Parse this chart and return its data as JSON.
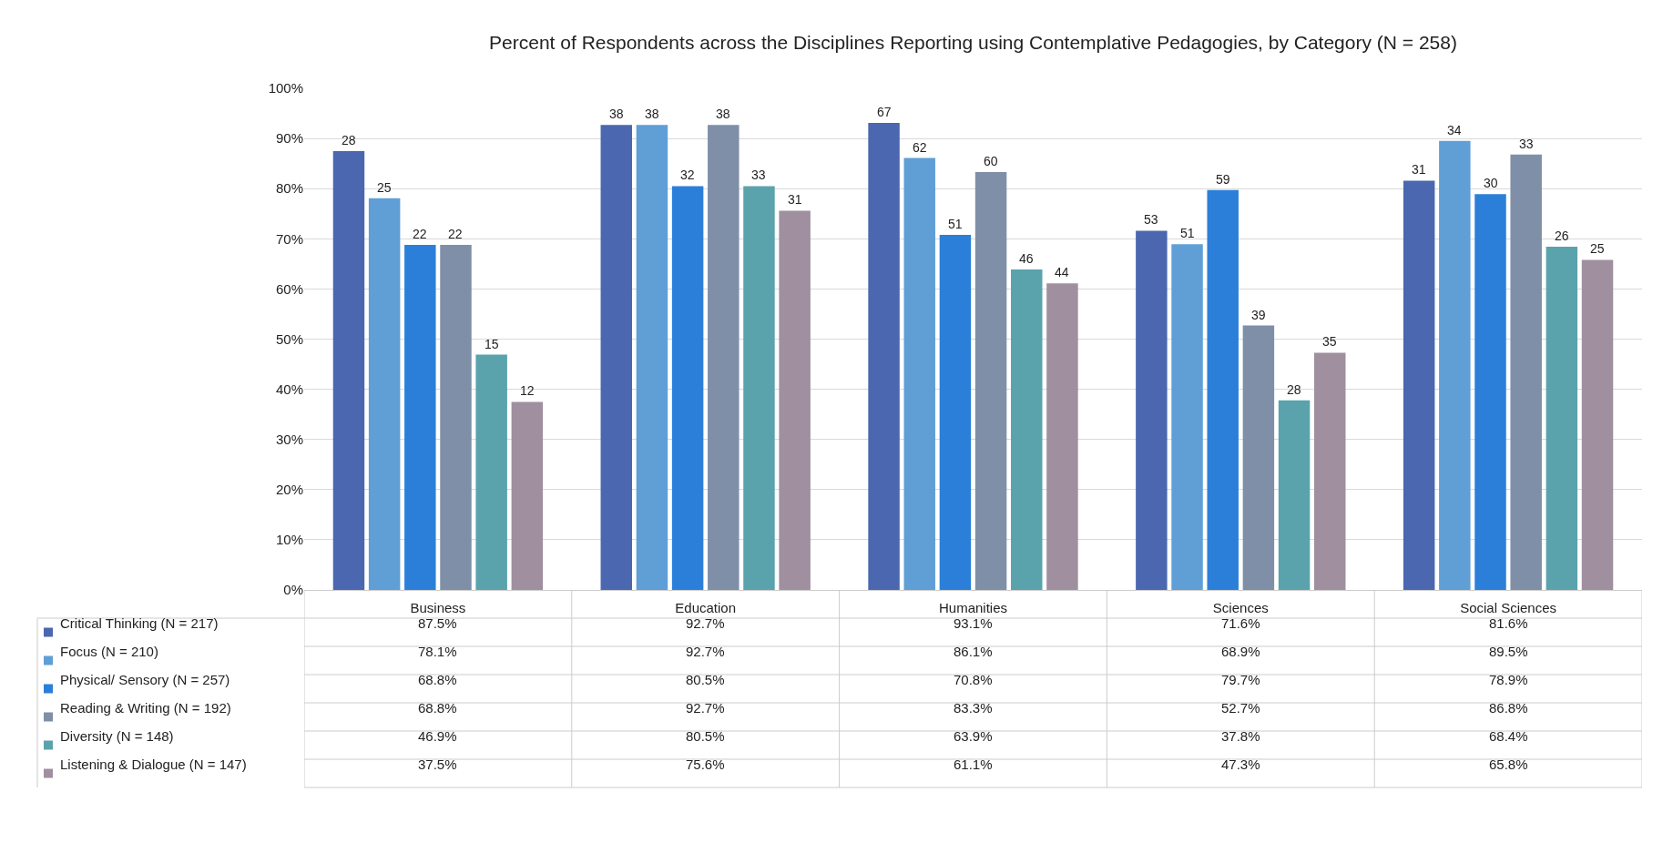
{
  "chart_data": {
    "type": "bar",
    "title": "Percent of Respondents across the Disciplines Reporting using Contemplative Pedagogies, by Category (N = 258)",
    "categories": [
      "Business",
      "Education",
      "Humanities",
      "Sciences",
      "Social Sciences"
    ],
    "series": [
      {
        "name": "Critical Thinking (N = 217)",
        "color": "#4a67b0",
        "values": [
          87.5,
          92.7,
          93.1,
          71.6,
          81.6
        ],
        "value_labels": [
          "87.5%",
          "92.7%",
          "93.1%",
          "71.6%",
          "81.6%"
        ]
      },
      {
        "name": "Focus (N = 210)",
        "color": "#5f9fd6",
        "values": [
          78.1,
          92.7,
          86.1,
          68.9,
          89.5
        ],
        "value_labels": [
          "78.1%",
          "92.7%",
          "86.1%",
          "68.9%",
          "89.5%"
        ]
      },
      {
        "name": "Physical/ Sensory (N = 257)",
        "color": "#2b7fd9",
        "values": [
          68.8,
          80.5,
          70.8,
          79.7,
          78.9
        ],
        "value_labels": [
          "68.8%",
          "80.5%",
          "70.8%",
          "79.7%",
          "78.9%"
        ]
      },
      {
        "name": "Reading & Writing (N = 192)",
        "color": "#7f8fa8",
        "values": [
          68.8,
          92.7,
          83.3,
          52.7,
          86.8
        ],
        "value_labels": [
          "68.8%",
          "92.7%",
          "83.3%",
          "52.7%",
          "86.8%"
        ]
      },
      {
        "name": "Diversity (N = 148)",
        "color": "#5aa3ad",
        "values": [
          46.9,
          80.5,
          63.9,
          37.8,
          68.4
        ],
        "value_labels": [
          "46.9%",
          "80.5%",
          "63.9%",
          "37.8%",
          "68.4%"
        ]
      },
      {
        "name": "Listening & Dialogue (N = 147)",
        "color": "#9f8f9f",
        "values": [
          37.5,
          75.6,
          61.1,
          47.3,
          65.8
        ],
        "value_labels": [
          "37.5%",
          "75.6%",
          "61.1%",
          "47.3%",
          "65.8%"
        ]
      }
    ],
    "annotations": [
      "28",
      "38",
      "67",
      "53",
      "31",
      "25",
      "38",
      "62",
      "51",
      "34",
      "22",
      "32",
      "51",
      "59",
      "30",
      "22",
      "38",
      "60",
      "39",
      "33",
      "15",
      "33",
      "46",
      "28",
      "26",
      "12",
      "31",
      "44",
      "35",
      "25"
    ],
    "ylim": [
      0,
      100
    ],
    "yticks": [
      {
        "value": 0,
        "label": "0%"
      },
      {
        "value": 10,
        "label": "10%"
      },
      {
        "value": 20,
        "label": "20%"
      },
      {
        "value": 30,
        "label": "30%"
      },
      {
        "value": 40,
        "label": "40%"
      },
      {
        "value": 50,
        "label": "50%"
      },
      {
        "value": 60,
        "label": "60%"
      },
      {
        "value": 70,
        "label": "70%"
      },
      {
        "value": 80,
        "label": "80%"
      },
      {
        "value": 90,
        "label": "90%"
      },
      {
        "value": 100,
        "label": "100%"
      }
    ],
    "grid": "y",
    "legend": "bottom"
  }
}
